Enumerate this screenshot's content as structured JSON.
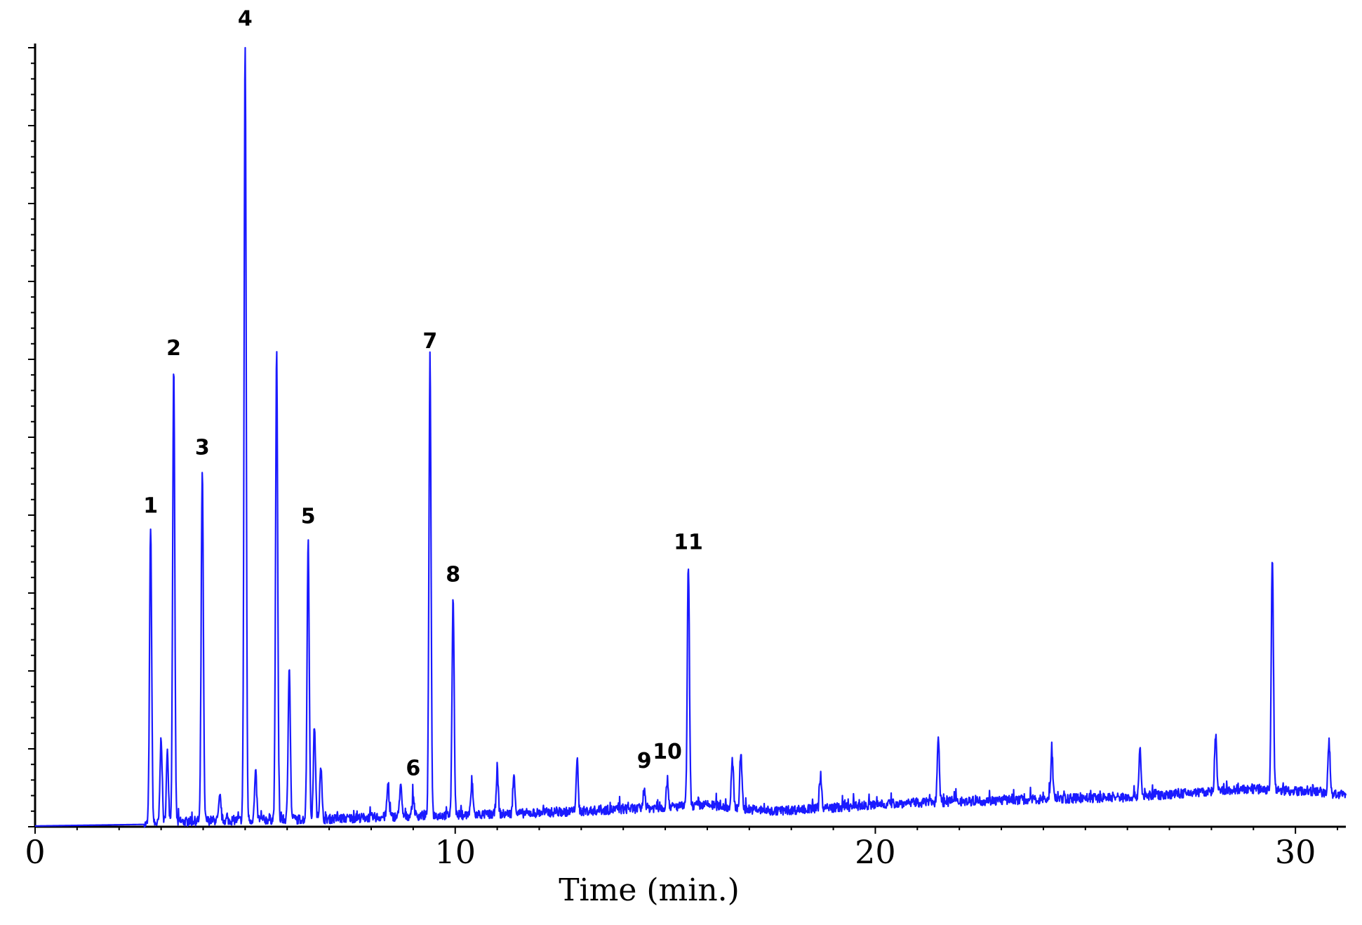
{
  "chart_data": {
    "type": "line",
    "title": "",
    "xlabel": "Time (min.)",
    "ylabel": "",
    "xlim": [
      0,
      31.2
    ],
    "ylim": [
      0,
      100
    ],
    "x_ticks": [
      0,
      10,
      20,
      30
    ],
    "x_tick_labels": [
      "0",
      "10",
      "20",
      "30"
    ],
    "grid": false,
    "legend": "none",
    "line_color": "#1a1aff",
    "peaks": [
      {
        "label": "1",
        "time": 2.75,
        "height": 38,
        "label_at_peak": true
      },
      {
        "label": "2",
        "time": 3.3,
        "height": 58,
        "label_at_peak": true
      },
      {
        "label": "3",
        "time": 3.98,
        "height": 45,
        "label_at_peak": true
      },
      {
        "label": "4",
        "time": 5.0,
        "height": 100,
        "label_at_peak": true
      },
      {
        "label": "5",
        "time": 6.5,
        "height": 36,
        "label_at_peak": true
      },
      {
        "label": "6",
        "time": 9.0,
        "height": 2.5,
        "label_at_peak": false
      },
      {
        "label": "7",
        "time": 9.4,
        "height": 58,
        "label_at_peak": true
      },
      {
        "label": "8",
        "time": 9.95,
        "height": 28,
        "label_at_peak": true
      },
      {
        "label": "9",
        "time": 14.5,
        "height": 2.5,
        "label_at_peak": false
      },
      {
        "label": "10",
        "time": 15.05,
        "height": 3.5,
        "label_at_peak": false
      },
      {
        "label": "11",
        "time": 15.55,
        "height": 31,
        "label_at_peak": true
      }
    ],
    "unlabeled_peaks": [
      {
        "time": 3.0,
        "height": 11
      },
      {
        "time": 3.15,
        "height": 9
      },
      {
        "time": 4.4,
        "height": 3
      },
      {
        "time": 5.25,
        "height": 6
      },
      {
        "time": 5.75,
        "height": 60
      },
      {
        "time": 6.05,
        "height": 20
      },
      {
        "time": 6.65,
        "height": 12
      },
      {
        "time": 6.8,
        "height": 7
      },
      {
        "time": 8.4,
        "height": 4
      },
      {
        "time": 8.7,
        "height": 4
      },
      {
        "time": 10.4,
        "height": 4
      },
      {
        "time": 11.0,
        "height": 5.5
      },
      {
        "time": 11.4,
        "height": 5
      },
      {
        "time": 12.9,
        "height": 6
      },
      {
        "time": 16.6,
        "height": 6
      },
      {
        "time": 16.8,
        "height": 7
      },
      {
        "time": 18.7,
        "height": 4
      },
      {
        "time": 21.5,
        "height": 8.5
      },
      {
        "time": 24.2,
        "height": 6
      },
      {
        "time": 26.3,
        "height": 6
      },
      {
        "time": 28.1,
        "height": 7
      },
      {
        "time": 29.45,
        "height": 30
      },
      {
        "time": 30.8,
        "height": 6.5
      }
    ],
    "baseline": [
      [
        0,
        0.1
      ],
      [
        2.6,
        0.3
      ],
      [
        4.0,
        0.8
      ],
      [
        7.0,
        1.0
      ],
      [
        9.0,
        1.4
      ],
      [
        11.0,
        1.6
      ],
      [
        13.0,
        2.0
      ],
      [
        15.0,
        2.5
      ],
      [
        16.0,
        2.8
      ],
      [
        17.5,
        2.0
      ],
      [
        19.5,
        2.6
      ],
      [
        20.5,
        3.0
      ],
      [
        23.0,
        3.4
      ],
      [
        26.0,
        3.8
      ],
      [
        28.0,
        4.5
      ],
      [
        29.0,
        4.8
      ],
      [
        30.5,
        4.5
      ],
      [
        31.2,
        4.0
      ]
    ]
  }
}
